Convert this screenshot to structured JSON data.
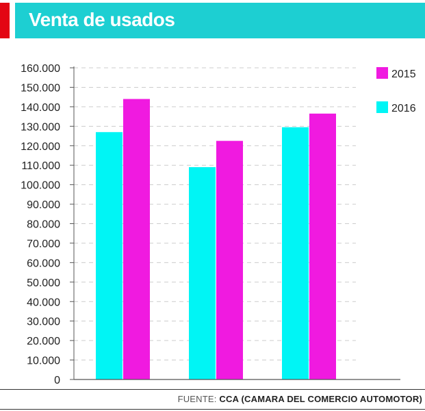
{
  "title": "Venta de usados",
  "footer": {
    "prefix": "FUENTE: ",
    "source": "CCA (CAMARA DEL COMERCIO AUTOMOTOR)"
  },
  "colors": {
    "2016": "#00f5f5",
    "2015": "#f01ae0",
    "accent": "#1dcfd2",
    "red": "#e30613"
  },
  "chart_data": {
    "type": "bar",
    "title": "Venta de usados",
    "categories": [
      "",
      "",
      ""
    ],
    "series": [
      {
        "name": "2016",
        "values": [
          127000,
          109000,
          129500
        ]
      },
      {
        "name": "2015",
        "values": [
          144000,
          122500,
          136500
        ]
      }
    ],
    "ylim": [
      0,
      160000
    ],
    "yticks": [
      0,
      10000,
      20000,
      30000,
      40000,
      50000,
      60000,
      70000,
      80000,
      90000,
      100000,
      110000,
      120000,
      130000,
      140000,
      150000,
      160000
    ],
    "ytick_labels": [
      "0",
      "10.000",
      "20.000",
      "30.000",
      "40.000",
      "50.000",
      "60.000",
      "70.000",
      "80.000",
      "90.000",
      "100.000",
      "110.000",
      "120.000",
      "130.000",
      "140.000",
      "150.000",
      "160.000"
    ],
    "legend": [
      {
        "label": "2015",
        "color": "#f01ae0"
      },
      {
        "label": "2016",
        "color": "#00f5f5"
      }
    ],
    "grid": true
  }
}
